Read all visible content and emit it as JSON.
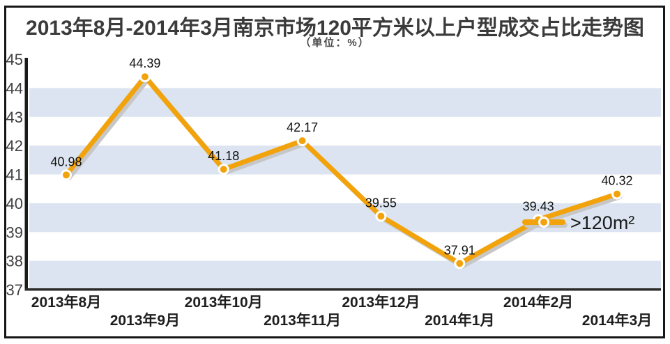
{
  "title": "2013年8月-2014年3月南京市场120平方米以上户型成交占比走势图",
  "subtitle": "（单位：%）",
  "legend": {
    "label": ">120m²"
  },
  "chart_data": {
    "type": "line",
    "title": "2013年8月-2014年3月南京市场120平方米以上户型成交占比走势图",
    "unit_note": "（单位：%）",
    "categories": [
      "2013年8月",
      "2013年9月",
      "2013年10月",
      "2013年11月",
      "2013年12月",
      "2014年1月",
      "2014年2月",
      "2014年3月"
    ],
    "series": [
      {
        "name": ">120m²",
        "values": [
          40.98,
          44.39,
          41.18,
          42.17,
          39.55,
          37.91,
          39.43,
          40.32
        ]
      }
    ],
    "ylim": [
      37,
      45
    ],
    "yticks": [
      37,
      38,
      39,
      40,
      41,
      42,
      43,
      44,
      45
    ],
    "xlabel": "",
    "ylabel": "",
    "grid": "alternating-horizontal-bands",
    "x_axis_label_layout": "staggered-two-rows",
    "legend_position": "inside-right-middle",
    "data_labels_shown": true
  },
  "colors": {
    "line": "#F2A30C",
    "line_shadow": "#C7C7C7",
    "marker_fill": "#F2A30C",
    "marker_ring": "#FFFFFF",
    "band": "#DBE4F0",
    "y_axis": "#1A1A1A",
    "x_axis": "#2B2B2B",
    "title_text": "#3B3B3B",
    "ytick_text": "#3F3F3F",
    "xtick_text": "#1E1E1E",
    "data_label_text": "#101010",
    "legend_text": "#1A1A1A",
    "frame_border": "#161616",
    "background": "#FFFFFF"
  }
}
